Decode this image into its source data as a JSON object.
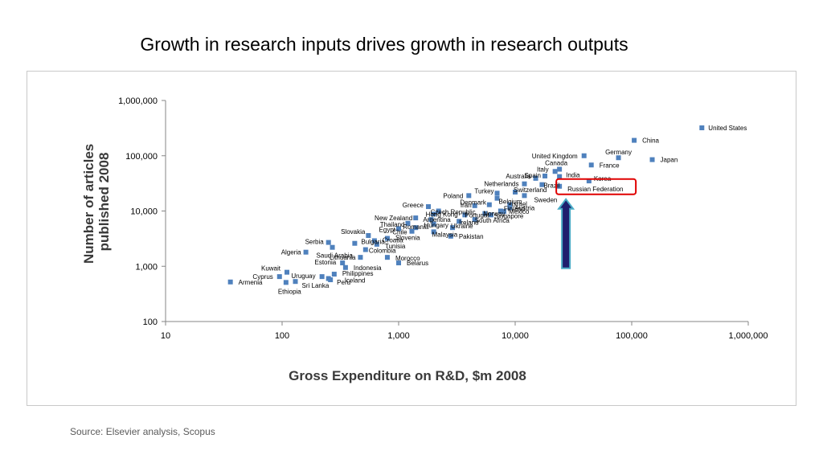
{
  "title": "Growth in research inputs drives growth in research outputs",
  "source": "Source: Elsevier analysis, Scopus",
  "colors": {
    "marker": "#4F81BD",
    "highlight_box": "#E00000",
    "arrow_fill": "#1F1F6E",
    "arrow_outline": "#4BACC6"
  },
  "annotations": {
    "highlight": "Russian Federation",
    "arrow": "up"
  },
  "chart_data": {
    "type": "scatter",
    "title": "",
    "xlabel": "Gross Expenditure on R&D, $m 2008",
    "ylabel_lines": [
      "Number of articles",
      "published 2008"
    ],
    "xscale": "log",
    "yscale": "log",
    "xlim": [
      10,
      1000000
    ],
    "ylim": [
      100,
      1000000
    ],
    "xticks": [
      10,
      100,
      1000,
      10000,
      100000,
      1000000
    ],
    "xtick_labels": [
      "10",
      "100",
      "1,000",
      "10,000",
      "100,000",
      "1,000,000"
    ],
    "yticks": [
      100,
      1000,
      10000,
      100000,
      1000000
    ],
    "ytick_labels": [
      "100",
      "1,000",
      "10,000",
      "100,000",
      "1,000,000"
    ],
    "grid": false,
    "legend": "none",
    "points": [
      {
        "label": "United States",
        "x": 400000,
        "y": 320000
      },
      {
        "label": "China",
        "x": 105000,
        "y": 190000
      },
      {
        "label": "Japan",
        "x": 150000,
        "y": 85000
      },
      {
        "label": "Germany",
        "x": 77000,
        "y": 92000
      },
      {
        "label": "United Kingdom",
        "x": 39000,
        "y": 100000
      },
      {
        "label": "France",
        "x": 45000,
        "y": 68000
      },
      {
        "label": "Canada",
        "x": 24000,
        "y": 57000
      },
      {
        "label": "Italy",
        "x": 22000,
        "y": 52000
      },
      {
        "label": "Spain",
        "x": 18000,
        "y": 43000
      },
      {
        "label": "India",
        "x": 24000,
        "y": 42000
      },
      {
        "label": "Australia",
        "x": 15000,
        "y": 39000
      },
      {
        "label": "Korea",
        "x": 43000,
        "y": 35000
      },
      {
        "label": "Russian Federation",
        "x": 24000,
        "y": 28000
      },
      {
        "label": "Brazil",
        "x": 17000,
        "y": 30000
      },
      {
        "label": "Netherlands",
        "x": 12000,
        "y": 31000
      },
      {
        "label": "Switzerland",
        "x": 10000,
        "y": 22000
      },
      {
        "label": "Sweden",
        "x": 12000,
        "y": 19000
      },
      {
        "label": "Turkey",
        "x": 7000,
        "y": 21000
      },
      {
        "label": "Poland",
        "x": 4000,
        "y": 19000
      },
      {
        "label": "Belgium",
        "x": 7000,
        "y": 17000
      },
      {
        "label": "Denmark",
        "x": 6000,
        "y": 13000
      },
      {
        "label": "Israel",
        "x": 9000,
        "y": 13000
      },
      {
        "label": "Iran",
        "x": 4500,
        "y": 12500
      },
      {
        "label": "Austria",
        "x": 9000,
        "y": 11500
      },
      {
        "label": "Greece",
        "x": 1800,
        "y": 12000
      },
      {
        "label": "Czech Republic",
        "x": 2200,
        "y": 10000
      },
      {
        "label": "Finland",
        "x": 7500,
        "y": 10000
      },
      {
        "label": "Mexico",
        "x": 8000,
        "y": 9800
      },
      {
        "label": "Norway",
        "x": 5500,
        "y": 9000
      },
      {
        "label": "Hong Kong",
        "x": 2000,
        "y": 8800
      },
      {
        "label": "Portugal",
        "x": 3700,
        "y": 8500
      },
      {
        "label": "Singapore",
        "x": 6200,
        "y": 8500
      },
      {
        "label": "New Zealand",
        "x": 1400,
        "y": 7500
      },
      {
        "label": "Argentina",
        "x": 1900,
        "y": 7000
      },
      {
        "label": "South Africa",
        "x": 4500,
        "y": 7000
      },
      {
        "label": "Ireland",
        "x": 3300,
        "y": 6500
      },
      {
        "label": "Thailand",
        "x": 1200,
        "y": 6000
      },
      {
        "label": "Hungary",
        "x": 2000,
        "y": 5800
      },
      {
        "label": "Romania",
        "x": 1400,
        "y": 5000
      },
      {
        "label": "Ukraine",
        "x": 2900,
        "y": 5000
      },
      {
        "label": "Egypt",
        "x": 1000,
        "y": 4800
      },
      {
        "label": "Chile",
        "x": 1300,
        "y": 4300
      },
      {
        "label": "Malaysia",
        "x": 2000,
        "y": 4200
      },
      {
        "label": "Pakistan",
        "x": 2800,
        "y": 3500
      },
      {
        "label": "Slovakia",
        "x": 550,
        "y": 3600
      },
      {
        "label": "Slovenia",
        "x": 800,
        "y": 3200
      },
      {
        "label": "Croatia",
        "x": 620,
        "y": 2900
      },
      {
        "label": "Tunisia",
        "x": 650,
        "y": 2500
      },
      {
        "label": "Serbia",
        "x": 250,
        "y": 2700
      },
      {
        "label": "Bulgaria",
        "x": 420,
        "y": 2600
      },
      {
        "label": "Saudi Arabia",
        "x": 270,
        "y": 2200
      },
      {
        "label": "Colombia",
        "x": 520,
        "y": 2000
      },
      {
        "label": "Algeria",
        "x": 160,
        "y": 1800
      },
      {
        "label": "Lithuania",
        "x": 470,
        "y": 1450
      },
      {
        "label": "Morocco",
        "x": 800,
        "y": 1450
      },
      {
        "label": "Estonia",
        "x": 330,
        "y": 1150
      },
      {
        "label": "Belarus",
        "x": 1000,
        "y": 1150
      },
      {
        "label": "Indonesia",
        "x": 350,
        "y": 950
      },
      {
        "label": "Kuwait",
        "x": 110,
        "y": 780
      },
      {
        "label": "Philippines",
        "x": 280,
        "y": 720
      },
      {
        "label": "Cyprus",
        "x": 95,
        "y": 650
      },
      {
        "label": "Uruguay",
        "x": 220,
        "y": 650
      },
      {
        "label": "Iceland",
        "x": 250,
        "y": 600
      },
      {
        "label": "Peru",
        "x": 260,
        "y": 570
      },
      {
        "label": "Armenia",
        "x": 36,
        "y": 520
      },
      {
        "label": "Ethiopia",
        "x": 108,
        "y": 510
      },
      {
        "label": "Sri Lanka",
        "x": 130,
        "y": 530
      }
    ]
  }
}
